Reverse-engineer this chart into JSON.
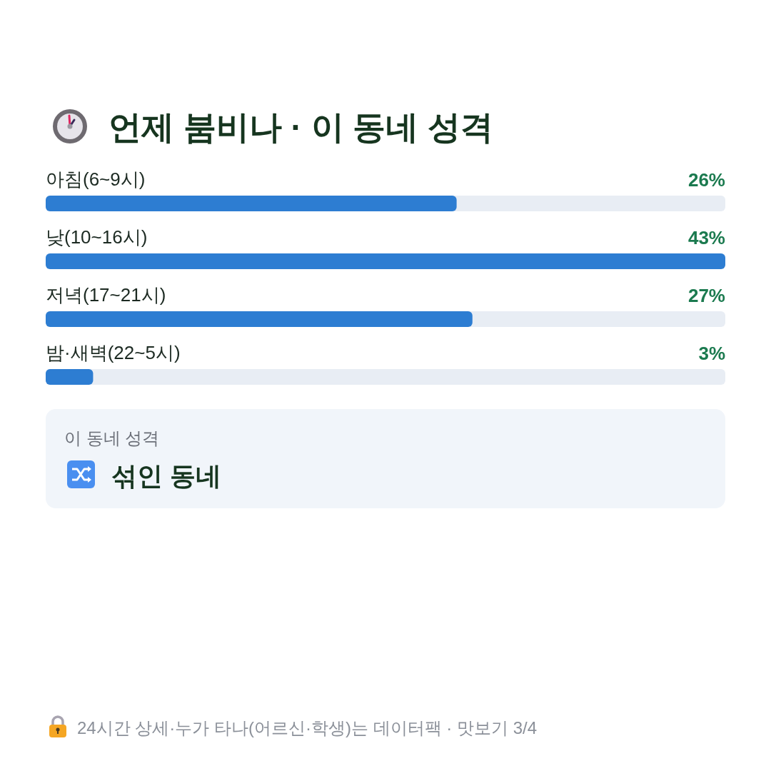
{
  "chart_data": {
    "type": "bar",
    "orientation": "horizontal",
    "title": "언제 붐비나 · 이 동네 성격",
    "categories": [
      "아침(6~9시)",
      "낮(10~16시)",
      "저녁(17~21시)",
      "밤·새벽(22~5시)"
    ],
    "values": [
      26,
      43,
      27,
      3
    ],
    "color": "#2d7dd2",
    "value_labels": [
      "26%",
      "43%",
      "27%",
      "3%"
    ],
    "annotations": [
      "이 동네 성격",
      "섞인 동네",
      "24시간 상세·누가 타나(어르신·학생)는 데이터팩 · 맛보기 3/4"
    ]
  }
}
